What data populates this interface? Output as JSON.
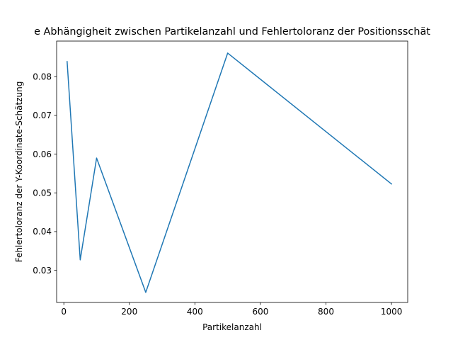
{
  "chart_data": {
    "type": "line",
    "title": "e Abhängigheit zwischen Partikelanzahl und Fehlertoloranz der Positionsschät",
    "xlabel": "Partikelanzahl",
    "ylabel": "Fehlertoloranz der Y-Koordinate-Schätzung",
    "xlim": [
      -22,
      1049.5
    ],
    "ylim": [
      0.0217,
      0.0892
    ],
    "xticks": [
      0,
      200,
      400,
      600,
      800,
      1000
    ],
    "xtick_labels": [
      "0",
      "200",
      "400",
      "600",
      "800",
      "1000"
    ],
    "yticks": [
      0.03,
      0.04,
      0.05,
      0.06,
      0.07,
      0.08
    ],
    "ytick_labels": [
      "0.03",
      "0.04",
      "0.05",
      "0.06",
      "0.07",
      "0.08"
    ],
    "grid": false,
    "series": [
      {
        "color": "#1f77b4",
        "x": [
          10,
          50,
          100,
          250,
          500,
          1000
        ],
        "y": [
          0.0839,
          0.0327,
          0.059,
          0.0243,
          0.0861,
          0.0523
        ]
      }
    ]
  }
}
